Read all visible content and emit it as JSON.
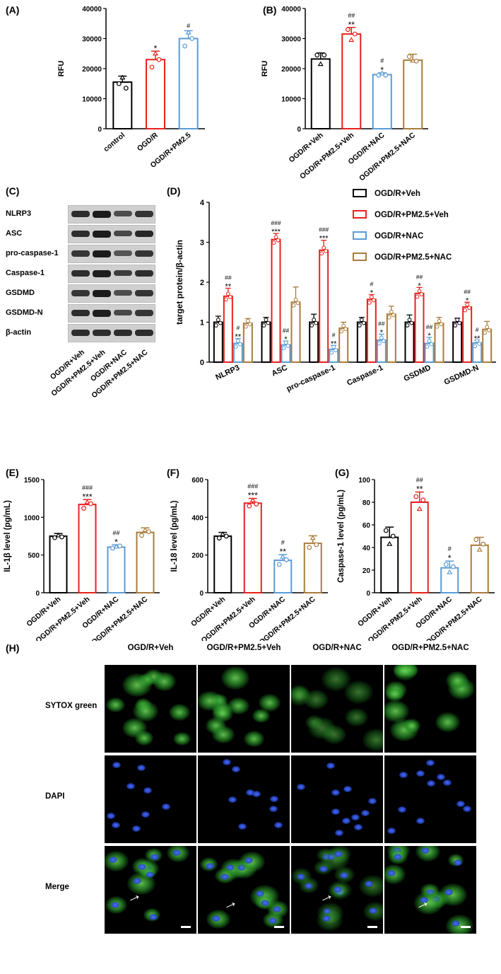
{
  "panels": {
    "A": "(A)",
    "B": "(B)",
    "C": "(C)",
    "D": "(D)",
    "E": "(E)",
    "F": "(F)",
    "G": "(G)",
    "H": "(H)"
  },
  "chart_data": [
    {
      "id": "A",
      "type": "bar",
      "categories": [
        "control",
        "OGD/R",
        "OGD/R+PM2.5"
      ],
      "values": [
        15500,
        23000,
        30000
      ],
      "errors": [
        2000,
        2800,
        2600
      ],
      "points": [
        [
          15000,
          17000,
          13500
        ],
        [
          20500,
          25000,
          23000
        ],
        [
          27500,
          32000,
          30000
        ]
      ],
      "colors": [
        "#000000",
        "#e8211d",
        "#5b9bd5"
      ],
      "annotations": [
        "",
        "*",
        "#"
      ],
      "ylabel": "RFU",
      "ylim": [
        0,
        40000
      ],
      "yticks": [
        "0",
        "10000",
        "20000",
        "30000",
        "40000"
      ]
    },
    {
      "id": "B",
      "type": "bar",
      "categories": [
        "OGD/R+Veh",
        "OGD/R+PM2.5+Veh",
        "OGD/R+NAC",
        "OGD/R+PM2.5+NAC"
      ],
      "values": [
        23200,
        31500,
        18000,
        22800
      ],
      "errors": [
        2000,
        2200,
        600,
        2000
      ],
      "points": [
        [
          24500,
          21500,
          24500
        ],
        [
          33000,
          29500,
          31500
        ],
        [
          17800,
          18400,
          17800
        ],
        [
          24000,
          22600,
          22500
        ]
      ],
      "colors": [
        "#000000",
        "#e8211d",
        "#5b9bd5",
        "#a97c3c"
      ],
      "annotations": [
        "",
        "**|##",
        "*|#",
        ""
      ],
      "ylabel": "RFU",
      "ylim": [
        0,
        40000
      ],
      "yticks": [
        "0",
        "10000",
        "20000",
        "30000",
        "40000"
      ]
    },
    {
      "id": "D",
      "type": "bar",
      "categories": [
        "NLRP3",
        "ASC",
        "pro-caspase-1",
        "Caspase-1",
        "GSDMD",
        "GSDMD-N"
      ],
      "series": [
        {
          "name": "OGD/R+Veh",
          "values": [
            1.0,
            1.0,
            1.0,
            1.0,
            1.0,
            1.0
          ],
          "errors": [
            0.15,
            0.12,
            0.2,
            0.12,
            0.18,
            0.1
          ],
          "annotations": [
            "",
            "",
            "",
            "",
            "",
            ""
          ]
        },
        {
          "name": "OGD/R+PM2.5+Veh",
          "values": [
            1.65,
            3.07,
            2.8,
            1.57,
            1.72,
            1.38
          ],
          "errors": [
            0.2,
            0.15,
            0.25,
            0.12,
            0.15,
            0.12
          ],
          "annotations": [
            "**|##",
            "***|###",
            "***|###",
            "*|#",
            "*|##",
            "*|##"
          ]
        },
        {
          "name": "OGD/R+NAC",
          "values": [
            0.47,
            0.43,
            0.32,
            0.55,
            0.47,
            0.48
          ],
          "errors": [
            0.12,
            0.1,
            0.1,
            0.15,
            0.15,
            0.07
          ],
          "annotations": [
            "**|#",
            "*|##",
            "**|#",
            "*|##",
            "*|##",
            "**|#"
          ]
        },
        {
          "name": "OGD/R+PM2.5+NAC",
          "values": [
            0.97,
            1.5,
            0.85,
            1.2,
            0.97,
            0.82
          ],
          "errors": [
            0.12,
            0.38,
            0.15,
            0.2,
            0.15,
            0.2
          ],
          "annotations": [
            "",
            "",
            "",
            "",
            "",
            ""
          ]
        }
      ],
      "colors": [
        "#000000",
        "#e8211d",
        "#5b9bd5",
        "#a97c3c"
      ],
      "ylabel": "target protein/β-actin",
      "ylim": [
        0,
        4
      ],
      "yticks": [
        "0",
        "1",
        "2",
        "3",
        "4"
      ],
      "legend": "top-right"
    },
    {
      "id": "E",
      "type": "bar",
      "categories": [
        "OGD/R+Veh",
        "OGD/R+PM2.5+Veh",
        "OGD/R+NAC",
        "OGD/R+PM2.5+NAC"
      ],
      "values": [
        750,
        1170,
        605,
        800
      ],
      "errors": [
        35,
        65,
        30,
        60
      ],
      "points": [
        [
          730,
          760,
          740
        ],
        [
          1120,
          1200,
          1180
        ],
        [
          590,
          610,
          620
        ],
        [
          760,
          830,
          810
        ]
      ],
      "colors": [
        "#000000",
        "#e8211d",
        "#5b9bd5",
        "#a97c3c"
      ],
      "annotations": [
        "",
        "***|###",
        "*|##",
        ""
      ],
      "ylabel": "IL-1β level (pg/mL)",
      "ylim": [
        0,
        1500
      ],
      "yticks": [
        "0",
        "500",
        "1000",
        "1500"
      ]
    },
    {
      "id": "F",
      "type": "bar",
      "categories": [
        "OGD/R+Veh",
        "OGD/R+PM2.5+Veh",
        "OGD/R+NAC",
        "OGD/R+PM2.5+NAC"
      ],
      "values": [
        300,
        475,
        172,
        262
      ],
      "errors": [
        20,
        25,
        30,
        40
      ],
      "points": [
        [
          290,
          310,
          300
        ],
        [
          460,
          490,
          470
        ],
        [
          150,
          190,
          175
        ],
        [
          240,
          290,
          255
        ]
      ],
      "colors": [
        "#000000",
        "#e8211d",
        "#5b9bd5",
        "#a97c3c"
      ],
      "annotations": [
        "",
        "***|###",
        "**|#",
        ""
      ],
      "ylabel": "IL-18 level (pg/mL)",
      "ylim": [
        0,
        600
      ],
      "yticks": [
        "0",
        "200",
        "400",
        "600"
      ]
    },
    {
      "id": "G",
      "type": "bar",
      "categories": [
        "OGD/R+Veh",
        "OGD/R+PM2.5+Veh",
        "OGD/R+NAC",
        "OGD/R+PM2.5+NAC"
      ],
      "values": [
        49,
        80,
        22,
        42
      ],
      "errors": [
        9,
        9,
        6,
        7
      ],
      "points": [
        [
          55,
          43,
          50
        ],
        [
          85,
          74,
          82
        ],
        [
          25,
          18,
          23
        ],
        [
          47,
          38,
          43
        ]
      ],
      "colors": [
        "#000000",
        "#e8211d",
        "#5b9bd5",
        "#a97c3c"
      ],
      "annotations": [
        "",
        "**|##",
        "*|#",
        ""
      ],
      "ylabel": "Caspase-1 level (pg/mL)",
      "ylim": [
        0,
        100
      ],
      "yticks": [
        "0",
        "20",
        "40",
        "60",
        "80",
        "100"
      ]
    }
  ],
  "western_blot": {
    "rows": [
      "NLRP3",
      "ASC",
      "pro-caspase-1",
      "Caspase-1",
      "GSDMD",
      "GSDMD-N",
      "β-actin"
    ],
    "lanes": [
      "OGD/R+Veh",
      "OGD/R+PM2.5+Veh",
      "OGD/R+NAC",
      "OGD/R+PM2.5+NAC"
    ]
  },
  "microscopy": {
    "columns": [
      "OGD/R+Veh",
      "OGD/R+PM2.5+Veh",
      "OGD/R+NAC",
      "OGD/R+PM2.5+NAC"
    ],
    "rows": [
      "SYTOX green",
      "DAPI",
      "Merge"
    ]
  }
}
